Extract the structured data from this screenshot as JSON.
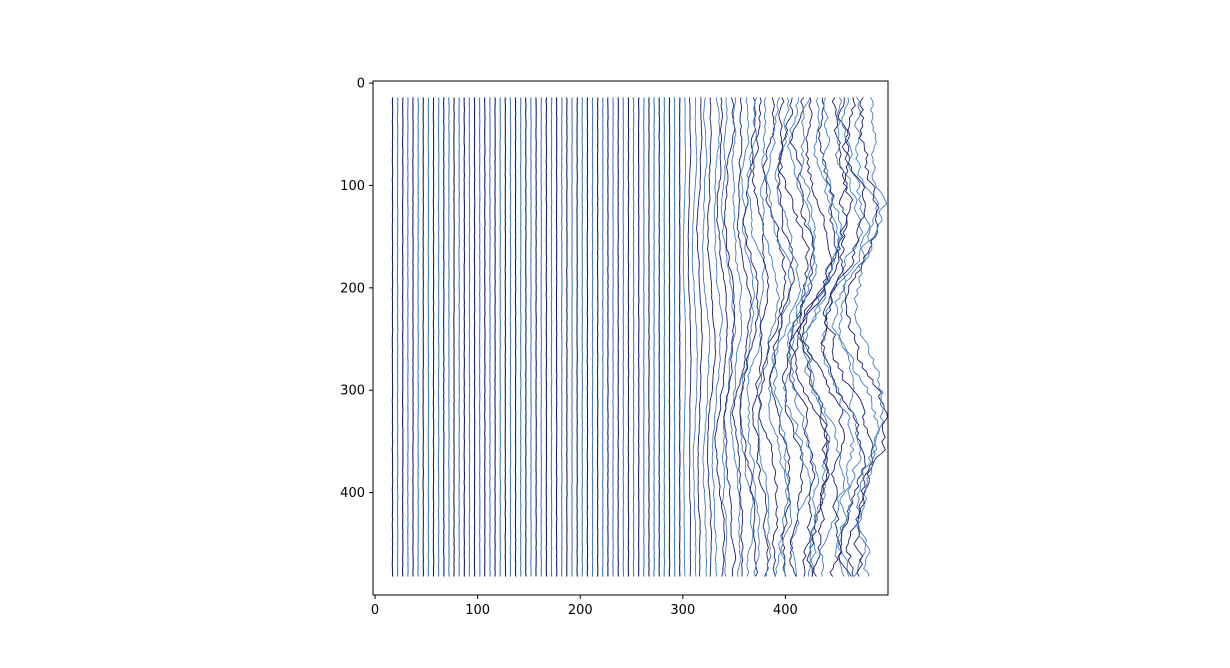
{
  "chart_data": {
    "type": "line",
    "title": "",
    "xlabel": "",
    "ylabel": "",
    "xlim": [
      -2,
      500
    ],
    "ylim": [
      500,
      -2
    ],
    "y_inverted": true,
    "grid": false,
    "legend": "none",
    "x_ticks": [
      0,
      100,
      200,
      300,
      400
    ],
    "y_ticks": [
      0,
      100,
      200,
      300,
      400
    ],
    "x_tick_labels": [
      "0",
      "100",
      "200",
      "300",
      "400"
    ],
    "y_tick_labels": [
      "0",
      "100",
      "200",
      "300",
      "400"
    ],
    "lines": {
      "x_start": 17,
      "x_end": 482,
      "spacing": 5,
      "y_top": 14,
      "y_bottom": 482,
      "straight_until_x": 300
    },
    "colors": {
      "dark_lines": "#1b1f6e",
      "light_lines": "#3f7fc0",
      "axes": "#000000"
    }
  }
}
